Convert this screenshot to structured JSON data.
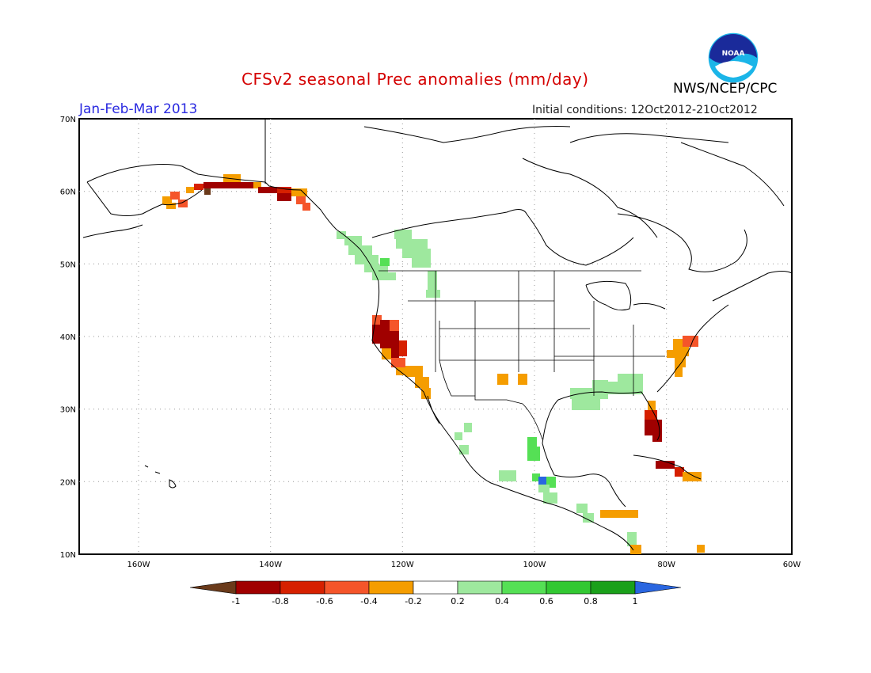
{
  "header": {
    "title": "CFSv2 seasonal Prec anomalies (mm/day)",
    "agency": "NWS/NCEP/CPC",
    "logo_text": "NOAA",
    "season": "Jan-Feb-Mar 2013",
    "initial_conditions": "Initial conditions: 12Oct2012-21Oct2012"
  },
  "map": {
    "region": "North America",
    "lat_labels": [
      "70N",
      "60N",
      "50N",
      "40N",
      "30N",
      "20N",
      "10N"
    ],
    "lon_labels": [
      "160W",
      "140W",
      "120W",
      "100W",
      "80W",
      "60W"
    ],
    "grid": "dotted",
    "colors": {
      "lt_-0.8": "#a00000",
      "-0.8_-0.6": "#d62000",
      "-0.6_-0.4": "#f5552a",
      "-0.4_-0.2": "#f59d00",
      "0.2_0.4": "#9ee89e",
      "0.4_0.6": "#55e055",
      "0.6_0.8": "#32c832",
      "0.8_1": "#1aa01a",
      "gt_1": "#2a66e0",
      "lt_-1": "#6a3a1a"
    },
    "anomaly_regions": [
      {
        "name": "Southern Alaska coast",
        "category": "-0.8_-0.6"
      },
      {
        "name": "Alaska Panhandle",
        "category": "lt_-0.8"
      },
      {
        "name": "Pacific Northwest",
        "category": "0.2_0.4"
      },
      {
        "name": "California",
        "category": "lt_-0.8"
      },
      {
        "name": "Southern California",
        "category": "-0.4_-0.2"
      },
      {
        "name": "Mid-Atlantic coast",
        "category": "-0.4_-0.2"
      },
      {
        "name": "Gulf Coast",
        "category": "0.2_0.4"
      },
      {
        "name": "Florida",
        "category": "lt_-0.8"
      },
      {
        "name": "Cuba",
        "category": "lt_-0.8"
      },
      {
        "name": "Western Mexico",
        "category": "0.4_0.6"
      },
      {
        "name": "Central America",
        "category": "-0.4_-0.2"
      }
    ]
  },
  "colorbar": {
    "tick_labels": [
      "-1",
      "-0.8",
      "-0.6",
      "-0.4",
      "-0.2",
      "0.2",
      "0.4",
      "0.6",
      "0.8",
      "1"
    ],
    "colors": [
      "#6a3a1a",
      "#a00000",
      "#d62000",
      "#f5552a",
      "#f59d00",
      "#ffffff",
      "#9ee89e",
      "#55e055",
      "#32c832",
      "#1aa01a",
      "#2a66e0"
    ]
  }
}
